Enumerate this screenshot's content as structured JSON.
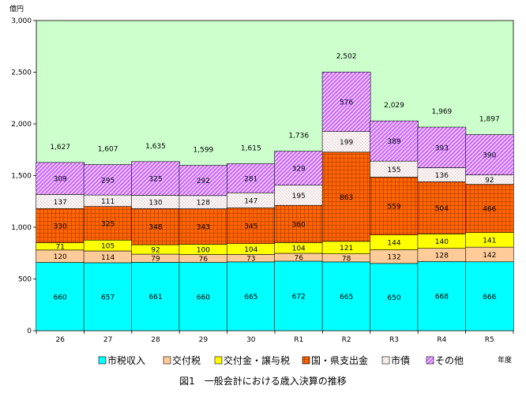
{
  "chart_data": {
    "type": "bar",
    "stacked": true,
    "title": "",
    "caption": "図1　一般会計における歳入決算の推移",
    "ylabel": "億円",
    "xlabel": "年度",
    "ylim": [
      0,
      3000
    ],
    "yticks": [
      0,
      500,
      1000,
      1500,
      2000,
      2500,
      3000
    ],
    "ytick_labels": [
      "0",
      "500",
      "1,000",
      "1,500",
      "2,000",
      "2,500",
      "3,000"
    ],
    "grid": false,
    "legend_position": "bottom",
    "categories": [
      "26",
      "27",
      "28",
      "29",
      "30",
      "R1",
      "R2",
      "R3",
      "R4",
      "R5"
    ],
    "totals": [
      1627,
      1607,
      1635,
      1599,
      1615,
      1736,
      2502,
      2029,
      1969,
      1897
    ],
    "total_labels": [
      "1,627",
      "1,607",
      "1,635",
      "1,599",
      "1,615",
      "1,736",
      "2,502",
      "2,029",
      "1,969",
      "1,897"
    ],
    "series": [
      {
        "name": "市税収入",
        "color": "#00ffff",
        "pattern": "solid",
        "values": [
          660,
          657,
          661,
          660,
          665,
          672,
          665,
          650,
          668,
          666
        ]
      },
      {
        "name": "交付税",
        "color": "#ffcc99",
        "pattern": "solid",
        "values": [
          120,
          114,
          79,
          76,
          73,
          76,
          78,
          132,
          128,
          142
        ]
      },
      {
        "name": "交付金・譲与税",
        "color": "#ffff00",
        "pattern": "solid",
        "values": [
          71,
          105,
          92,
          100,
          104,
          104,
          121,
          144,
          140,
          141
        ]
      },
      {
        "name": "国・県支出金",
        "color": "#ff6600",
        "pattern": "grid",
        "values": [
          330,
          325,
          348,
          343,
          345,
          360,
          863,
          559,
          504,
          466
        ]
      },
      {
        "name": "市債",
        "color": "#ffffff",
        "pattern": "dots",
        "values": [
          137,
          111,
          130,
          128,
          147,
          195,
          199,
          155,
          136,
          92
        ]
      },
      {
        "name": "その他",
        "color": "#cc66ff",
        "pattern": "diagonal",
        "values": [
          309,
          295,
          325,
          292,
          281,
          329,
          576,
          389,
          393,
          390
        ]
      }
    ],
    "plot_background": "#ccffcc"
  }
}
